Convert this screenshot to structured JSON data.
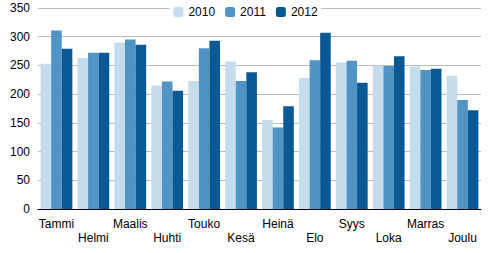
{
  "chart_data": {
    "type": "bar",
    "categories": [
      "Tammi",
      "Helmi",
      "Maalis",
      "Huhti",
      "Touko",
      "Kesä",
      "Heinä",
      "Elo",
      "Syys",
      "Loka",
      "Marras",
      "Joulu"
    ],
    "series": [
      {
        "name": "2010",
        "color": "#c5dcec",
        "values": [
          253,
          263,
          290,
          215,
          223,
          257,
          155,
          228,
          255,
          250,
          248,
          232
        ]
      },
      {
        "name": "2011",
        "color": "#4f94c4",
        "values": [
          311,
          272,
          295,
          222,
          280,
          223,
          142,
          259,
          258,
          249,
          242,
          190
        ]
      },
      {
        "name": "2012",
        "color": "#0b5994",
        "values": [
          279,
          272,
          286,
          206,
          293,
          238,
          179,
          307,
          220,
          266,
          244,
          172
        ]
      }
    ],
    "ylim": [
      0,
      350
    ],
    "yticks": [
      0,
      50,
      100,
      150,
      200,
      250,
      300,
      350
    ],
    "grid": true,
    "legend": "top"
  }
}
